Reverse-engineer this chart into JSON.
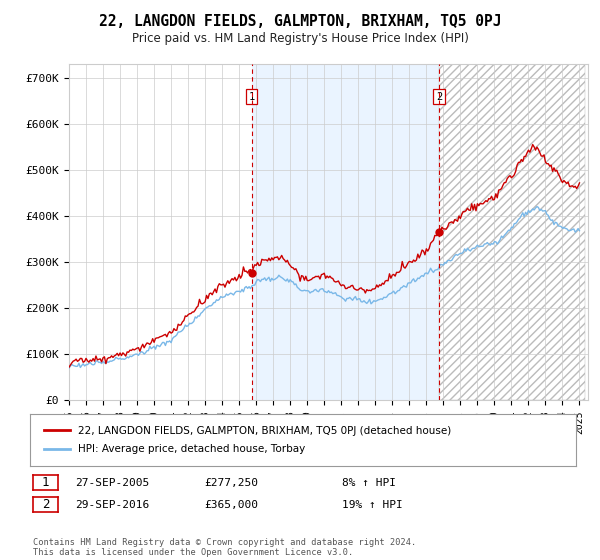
{
  "title": "22, LANGDON FIELDS, GALMPTON, BRIXHAM, TQ5 0PJ",
  "subtitle": "Price paid vs. HM Land Registry's House Price Index (HPI)",
  "ylabel_ticks": [
    "£0",
    "£100K",
    "£200K",
    "£300K",
    "£400K",
    "£500K",
    "£600K",
    "£700K"
  ],
  "ytick_values": [
    0,
    100000,
    200000,
    300000,
    400000,
    500000,
    600000,
    700000
  ],
  "ylim": [
    0,
    730000
  ],
  "xlim_start": 1995.3,
  "xlim_end": 2025.5,
  "purchase1_x": 2005.74,
  "purchase1_y": 277250,
  "purchase2_x": 2016.74,
  "purchase2_y": 365000,
  "purchase1_date": "27-SEP-2005",
  "purchase1_price": "£277,250",
  "purchase1_hpi": "8% ↑ HPI",
  "purchase2_date": "29-SEP-2016",
  "purchase2_price": "£365,000",
  "purchase2_hpi": "19% ↑ HPI",
  "hpi_color": "#7ab8e8",
  "price_color": "#cc0000",
  "vline_color": "#cc0000",
  "grid_color": "#cccccc",
  "shade_color": "#ddeeff",
  "hatch_color": "#bbbbbb",
  "background_color": "#ffffff",
  "legend_label_price": "22, LANGDON FIELDS, GALMPTON, BRIXHAM, TQ5 0PJ (detached house)",
  "legend_label_hpi": "HPI: Average price, detached house, Torbay",
  "footer": "Contains HM Land Registry data © Crown copyright and database right 2024.\nThis data is licensed under the Open Government Licence v3.0."
}
